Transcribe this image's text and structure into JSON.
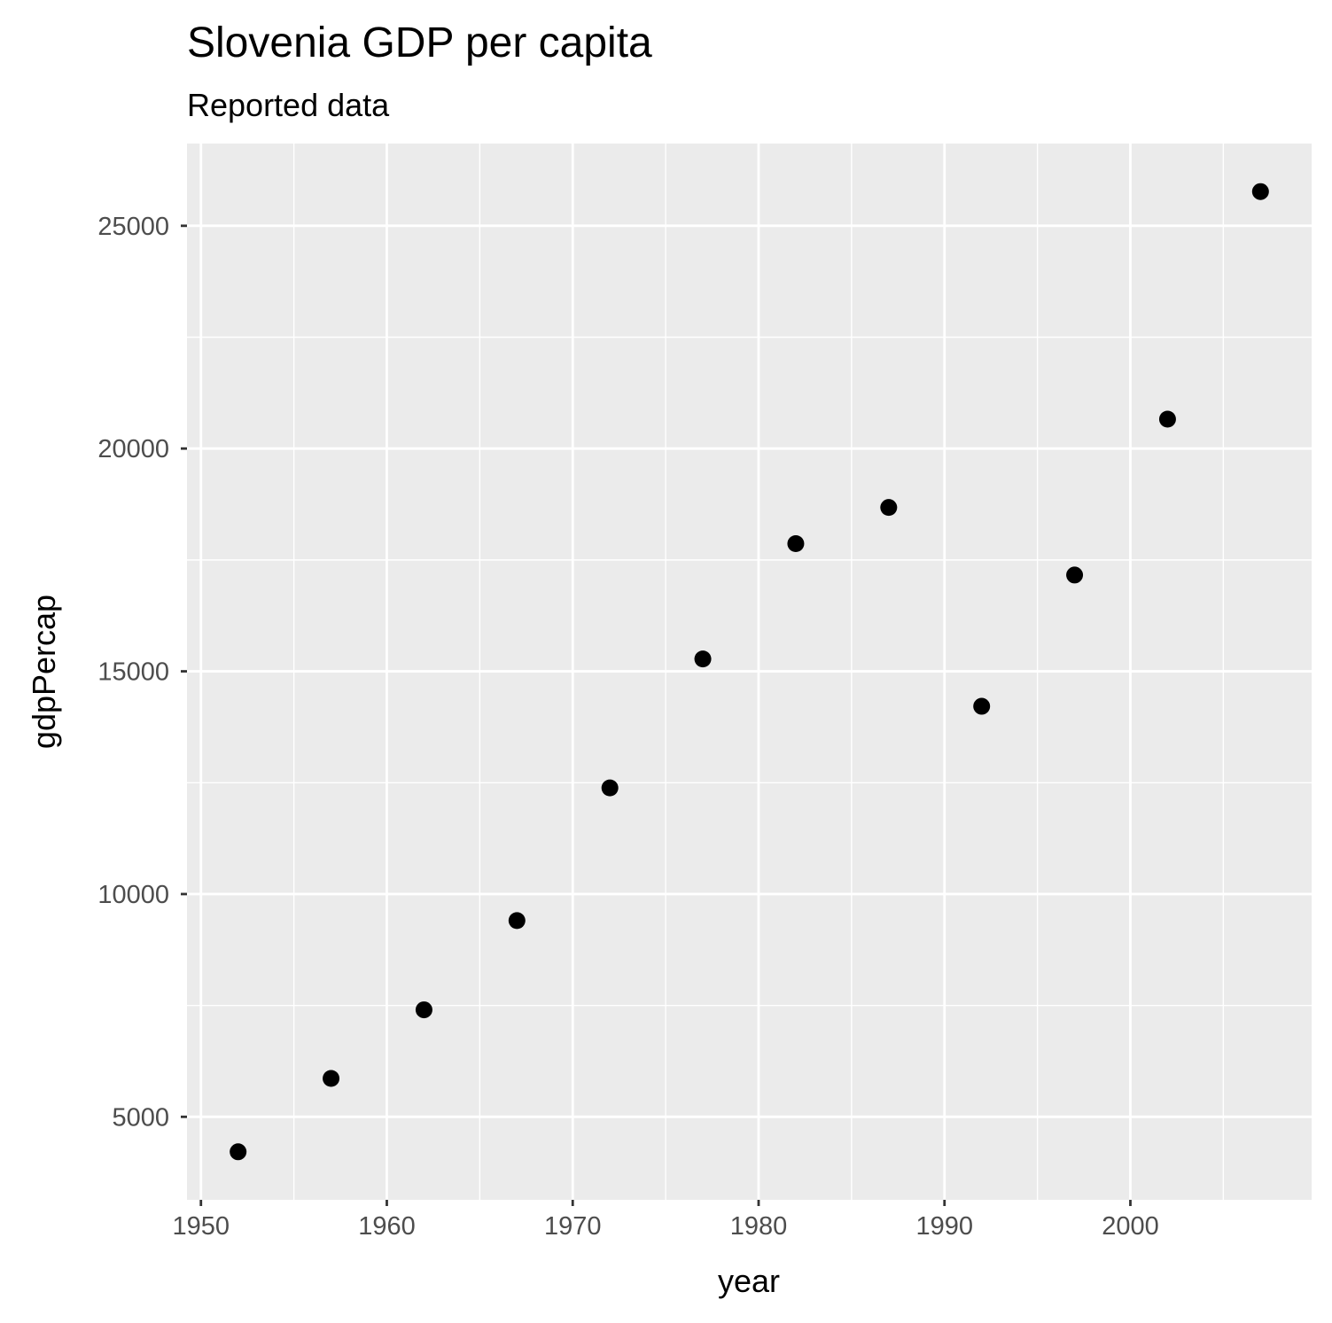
{
  "chart_data": {
    "type": "scatter",
    "title": "Slovenia GDP per capita",
    "subtitle": "Reported data",
    "xlabel": "year",
    "ylabel": "gdpPercap",
    "x": [
      1952,
      1957,
      1962,
      1967,
      1972,
      1977,
      1982,
      1987,
      1992,
      1997,
      2002,
      2007
    ],
    "y": [
      4215,
      5862,
      7402,
      9405,
      12383,
      15277,
      17866,
      18678,
      14215,
      17161,
      20660,
      25768
    ],
    "xlim": [
      1949.25,
      2009.75
    ],
    "ylim": [
      3137,
      26846
    ],
    "x_ticks": [
      1950,
      1960,
      1970,
      1980,
      1990,
      2000
    ],
    "x_tick_labels": [
      "1950",
      "1960",
      "1970",
      "1980",
      "1990",
      "2000"
    ],
    "y_ticks": [
      5000,
      10000,
      15000,
      20000,
      25000
    ],
    "y_tick_labels": [
      "5000",
      "10000",
      "15000",
      "20000",
      "25000"
    ],
    "grid": true,
    "legend": "none",
    "colors": {
      "panel_background": "#ebebeb",
      "grid_line": "#ffffff",
      "point": "#000000",
      "tick_label": "#4d4d4d",
      "tick_mark": "#333333"
    }
  }
}
